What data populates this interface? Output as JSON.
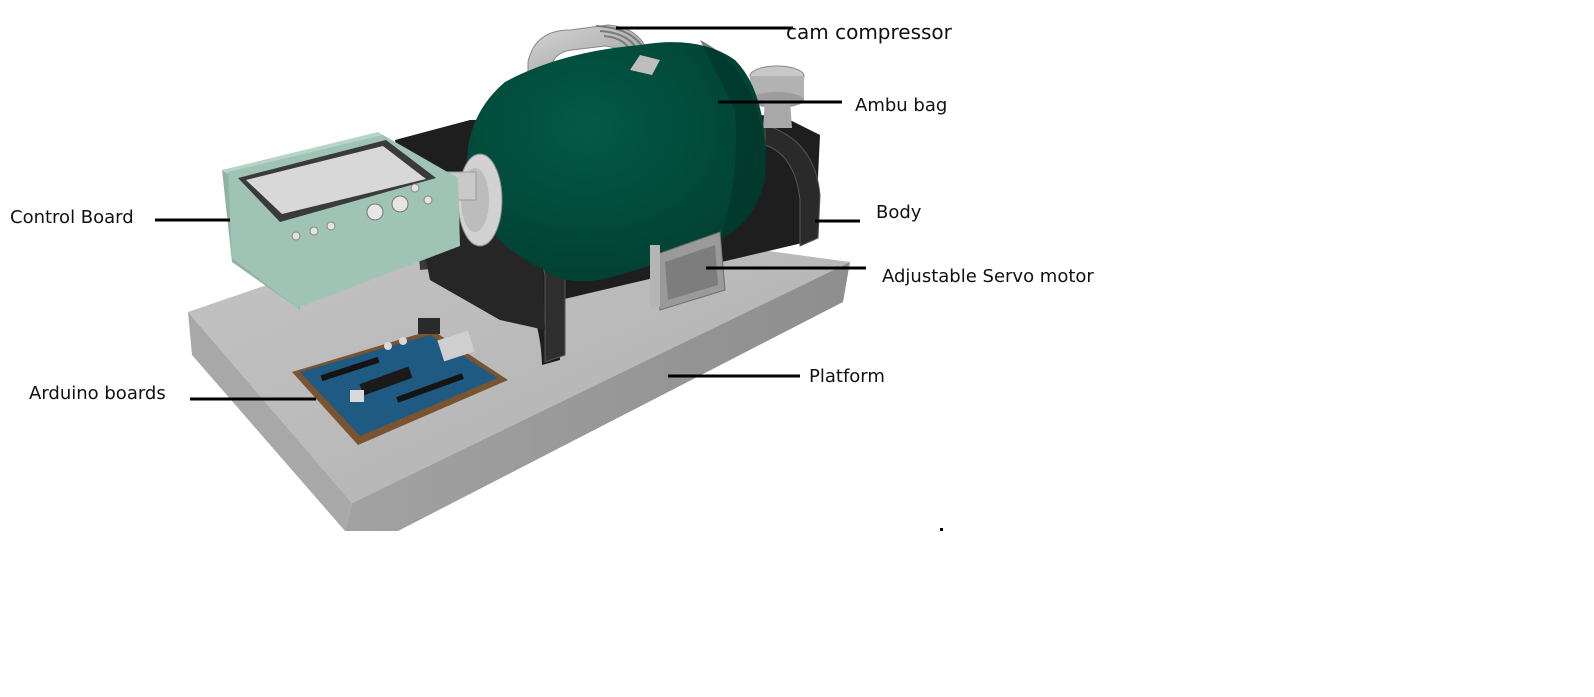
{
  "labels": {
    "cam_compressor": "cam compressor",
    "ambu_bag": "Ambu bag",
    "body": "Body",
    "adjustable_servo_motor": "Adjustable Servo motor",
    "platform": "Platform",
    "control_board": "Control Board",
    "arduino_boards": "Arduino boards"
  },
  "colors": {
    "ambu_bag": "#02493a",
    "control_board": "#9ec4b4",
    "platform_top": "#b8b8b8",
    "platform_side": "#9c9c9c",
    "body_frame": "#262626",
    "arduino_pcb": "#1f5a83",
    "arduino_base": "#7a5330",
    "leader_line": "#000000"
  }
}
